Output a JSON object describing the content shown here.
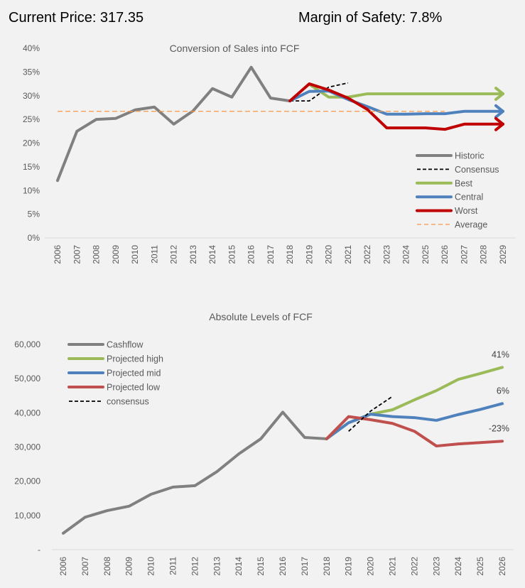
{
  "header": {
    "price_label": "Current Price: 317.35",
    "margin_label": "Margin of Safety: 7.8%"
  },
  "colors": {
    "historic": "#808080",
    "consensus": "#000000",
    "best": "#9bbb59",
    "central": "#4f81bd",
    "worst": "#c00000",
    "low": "#c0504d",
    "average": "#f79646",
    "axis": "#d9d9d9"
  },
  "chart_data": [
    {
      "type": "line",
      "title": "Conversion of Sales into FCF",
      "xlabel": "",
      "ylabel": "",
      "x": [
        "2006",
        "2007",
        "2008",
        "2009",
        "2010",
        "2011",
        "2012",
        "2013",
        "2014",
        "2015",
        "2016",
        "2017",
        "2018",
        "2019",
        "2020",
        "2021",
        "2022",
        "2023",
        "2024",
        "2025",
        "2026",
        "2027",
        "2028",
        "2029"
      ],
      "ylim": [
        0,
        40
      ],
      "yticks": [
        "0%",
        "5%",
        "10%",
        "15%",
        "20%",
        "25%",
        "30%",
        "35%",
        "40%"
      ],
      "legend_position": "bottom-right",
      "grid": false,
      "series": [
        {
          "name": "Historic",
          "color_key": "historic",
          "style": "solid",
          "arrow": false,
          "values": [
            12.1,
            22.5,
            25.0,
            25.2,
            27.0,
            27.6,
            24.0,
            26.8,
            31.5,
            29.7,
            36.0,
            29.5,
            28.9,
            null,
            null,
            null,
            null,
            null,
            null,
            null,
            null,
            null,
            null,
            null
          ]
        },
        {
          "name": "Consensus",
          "color_key": "consensus",
          "style": "dashed",
          "arrow": false,
          "values": [
            null,
            null,
            null,
            null,
            null,
            null,
            null,
            null,
            null,
            null,
            null,
            null,
            28.9,
            28.9,
            31.8,
            32.7,
            null,
            null,
            null,
            null,
            null,
            null,
            null,
            null
          ]
        },
        {
          "name": "Best",
          "color_key": "best",
          "style": "solid",
          "arrow": true,
          "values": [
            null,
            null,
            null,
            null,
            null,
            null,
            null,
            null,
            null,
            null,
            null,
            null,
            null,
            32.4,
            29.7,
            29.7,
            30.4,
            30.4,
            30.4,
            30.4,
            30.4,
            30.4,
            30.4,
            30.4
          ]
        },
        {
          "name": "Central",
          "color_key": "central",
          "style": "solid",
          "arrow": true,
          "values": [
            null,
            null,
            null,
            null,
            null,
            null,
            null,
            null,
            null,
            null,
            null,
            null,
            28.9,
            30.9,
            31.0,
            29.2,
            27.7,
            26.1,
            26.1,
            26.2,
            26.2,
            26.7,
            26.7,
            26.7
          ]
        },
        {
          "name": "Worst",
          "color_key": "worst",
          "style": "solid",
          "arrow": true,
          "values": [
            null,
            null,
            null,
            null,
            null,
            null,
            null,
            null,
            null,
            null,
            null,
            null,
            28.9,
            32.5,
            31.2,
            29.5,
            27.1,
            23.2,
            23.2,
            23.2,
            22.9,
            24.0,
            24.0,
            24.0
          ]
        },
        {
          "name": "Average",
          "color_key": "average",
          "style": "thin-dashed",
          "arrow": false,
          "values": [
            26.7,
            26.7,
            26.7,
            26.7,
            26.7,
            26.7,
            26.7,
            26.7,
            26.7,
            26.7,
            26.7,
            26.7,
            26.7,
            26.7,
            26.7,
            26.7,
            26.7,
            26.7,
            26.7,
            26.7,
            26.7,
            null,
            null,
            null
          ]
        }
      ]
    },
    {
      "type": "line",
      "title": "Absolute Levels of FCF",
      "xlabel": "",
      "ylabel": "",
      "x": [
        "2006",
        "2007",
        "2008",
        "2009",
        "2010",
        "2011",
        "2012",
        "2013",
        "2014",
        "2015",
        "2016",
        "2017",
        "2018",
        "2019",
        "2020",
        "2021",
        "2022",
        "2023",
        "2024",
        "2025",
        "2026"
      ],
      "ylim": [
        0,
        60000
      ],
      "yticks": [
        "-",
        "10,000",
        "20,000",
        "30,000",
        "40,000",
        "50,000",
        "60,000"
      ],
      "legend_position": "top-left",
      "grid": false,
      "series": [
        {
          "name": "Cashflow",
          "color_key": "historic",
          "style": "solid",
          "values": [
            4800,
            9500,
            11400,
            12700,
            16200,
            18300,
            18700,
            22800,
            28000,
            32400,
            40200,
            32800,
            32400,
            null,
            null,
            null,
            null,
            null,
            null,
            null,
            null
          ]
        },
        {
          "name": "Projected high",
          "color_key": "best",
          "style": "solid",
          "end_label": "41%",
          "values": [
            null,
            null,
            null,
            null,
            null,
            null,
            null,
            null,
            null,
            null,
            null,
            null,
            32400,
            37100,
            39600,
            40900,
            43800,
            46500,
            49800,
            51500,
            53300
          ]
        },
        {
          "name": "Projected mid",
          "color_key": "central",
          "style": "solid",
          "end_label": "6%",
          "values": [
            null,
            null,
            null,
            null,
            null,
            null,
            null,
            null,
            null,
            null,
            null,
            null,
            32400,
            37100,
            39600,
            38900,
            38600,
            37800,
            39500,
            41000,
            42700
          ]
        },
        {
          "name": "Projected low",
          "color_key": "low",
          "style": "solid",
          "end_label": "-23%",
          "values": [
            null,
            null,
            null,
            null,
            null,
            null,
            null,
            null,
            null,
            null,
            null,
            null,
            32400,
            38900,
            38000,
            36900,
            34600,
            30300,
            30900,
            31300,
            31700
          ]
        },
        {
          "name": "consensus",
          "color_key": "consensus",
          "style": "dashed",
          "values": [
            null,
            null,
            null,
            null,
            null,
            null,
            null,
            null,
            null,
            null,
            null,
            null,
            null,
            34600,
            40500,
            44800,
            null,
            null,
            null,
            null,
            null
          ]
        }
      ]
    }
  ]
}
